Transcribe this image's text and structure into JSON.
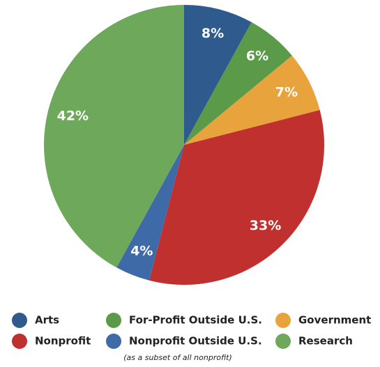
{
  "chart_data": {
    "type": "pie",
    "categories": [
      "Arts",
      "For-Profit Outside U.S.",
      "Government",
      "Nonprofit",
      "Nonprofit Outside U.S.",
      "Research"
    ],
    "values": [
      8,
      6,
      7,
      33,
      4,
      42
    ],
    "value_labels": [
      "8%",
      "6%",
      "7%",
      "33%",
      "4%",
      "42%"
    ],
    "colors": [
      "#2e5a8e",
      "#5a9a48",
      "#e8a33d",
      "#c0302f",
      "#3f6aa8",
      "#6ea85a"
    ],
    "legend_note": "(as a subset of all nonprofit)"
  }
}
